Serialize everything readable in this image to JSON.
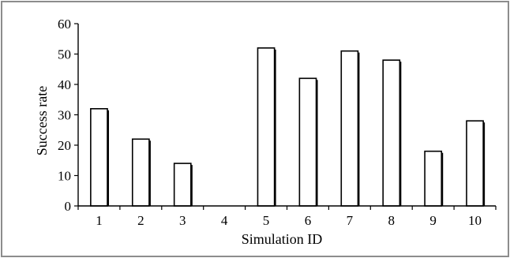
{
  "chart_data": {
    "type": "bar",
    "title": "",
    "xlabel": "Simulation ID",
    "ylabel": "Success rate",
    "categories": [
      "1",
      "2",
      "3",
      "4",
      "5",
      "6",
      "7",
      "8",
      "9",
      "10"
    ],
    "values": [
      32,
      22,
      14,
      0,
      52,
      42,
      51,
      48,
      18,
      28
    ],
    "ylim": [
      0,
      60
    ],
    "yticks": [
      "0",
      "10",
      "20",
      "30",
      "40",
      "50",
      "60"
    ],
    "grid": false,
    "legend": "none",
    "bar_color": "#ffffff",
    "edge_color": "#000000",
    "frame_color": "#8c8c8c"
  }
}
